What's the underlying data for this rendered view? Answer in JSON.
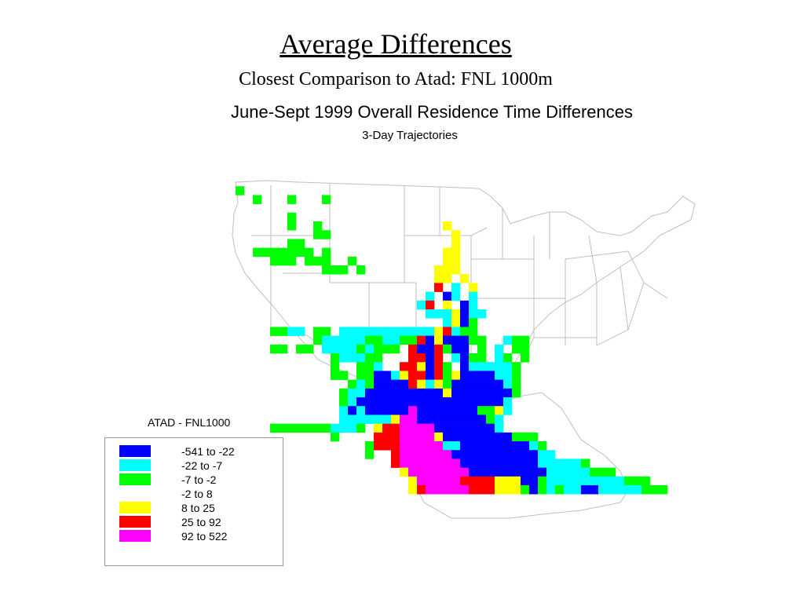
{
  "slide": {
    "title": "Average Differences",
    "subtitle": "Closest Comparison to Atad:  FNL 1000m"
  },
  "map": {
    "title": "June-Sept 1999 Overall Residence Time Differences",
    "subtitle": "3-Day Trajectories",
    "region": "Continental United States and northern Mexico",
    "cell_colors_by_class": {
      "B": "#0000ff",
      "C": "#00ffff",
      "G": "#00ff00",
      "Y": "#ffff00",
      "R": "#ff0000",
      "M": "#ff00ff"
    }
  },
  "legend": {
    "title": "ATAD - FNL1000",
    "items": [
      {
        "label": "-541 to -22",
        "color": "#0000ff"
      },
      {
        "label": "-22 to -7",
        "color": "#00ffff"
      },
      {
        "label": "-7 to -2",
        "color": "#00ff00"
      },
      {
        "label": "-2 to 8",
        "color": "#ffffff"
      },
      {
        "label": "8 to 25",
        "color": "#ffff00"
      },
      {
        "label": "25 to 92",
        "color": "#ff0000"
      },
      {
        "label": "92 to 522",
        "color": "#ff00ff"
      }
    ]
  }
}
